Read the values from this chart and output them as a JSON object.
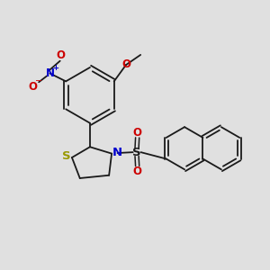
{
  "background_color": "#e0e0e0",
  "bond_color": "#1a1a1a",
  "bond_width": 1.3,
  "figsize": [
    3.0,
    3.0
  ],
  "dpi": 100,
  "xlim": [
    0,
    10
  ],
  "ylim": [
    0,
    10
  ]
}
